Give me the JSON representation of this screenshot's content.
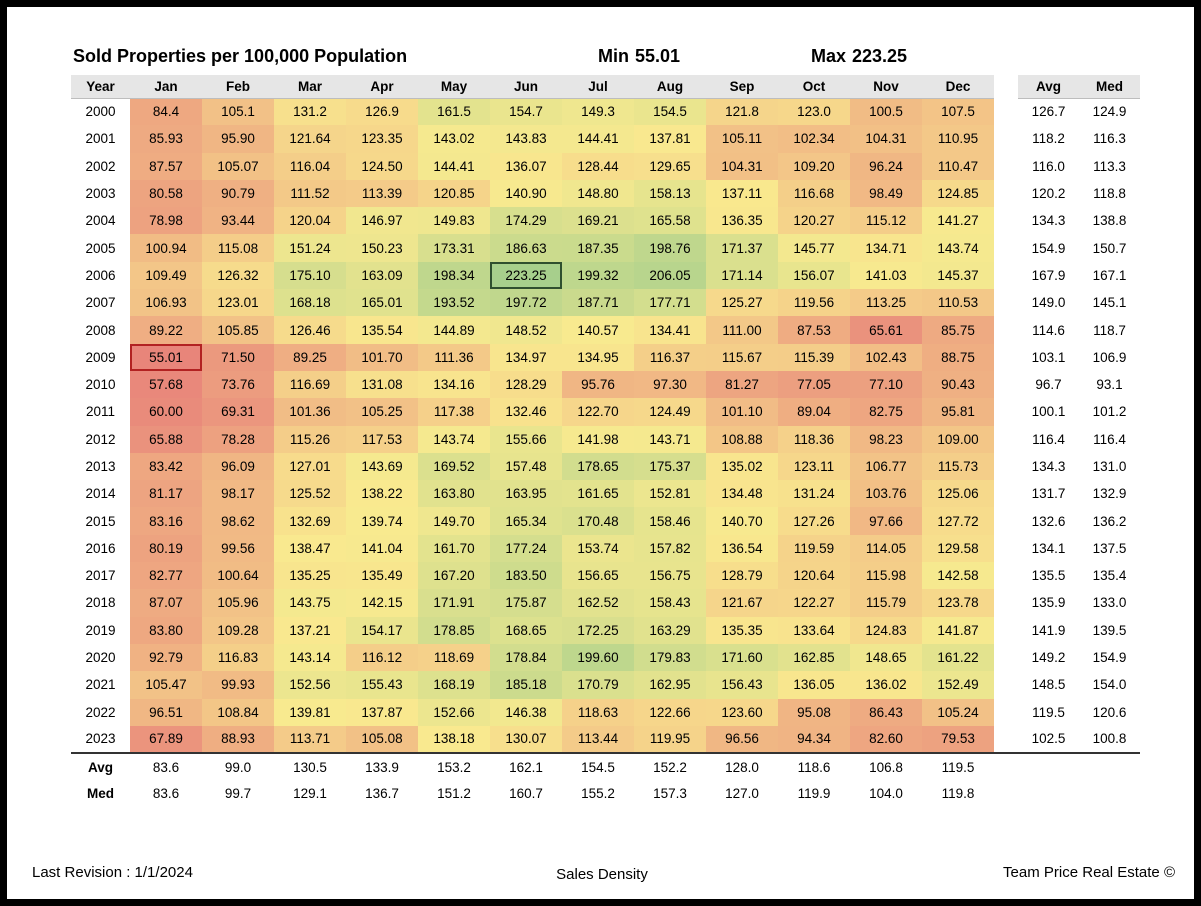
{
  "title": "Sold Properties per 100,000 Population",
  "min_label": "Min",
  "min_value": "55.01",
  "max_label": "Max",
  "max_value": "223.25",
  "chart_data": {
    "type": "heatmap",
    "title": "Sold Properties per 100,000 Population",
    "colorscale": [
      "#e8857a",
      "#f9ea8f",
      "#a7cf8c"
    ],
    "value_range": [
      55.01,
      223.25
    ],
    "headers": {
      "year": "Year",
      "months": [
        "Jan",
        "Feb",
        "Mar",
        "Apr",
        "May",
        "Jun",
        "Jul",
        "Aug",
        "Sep",
        "Oct",
        "Nov",
        "Dec"
      ],
      "avg": "Avg",
      "med": "Med"
    },
    "rows": [
      {
        "year": "2000",
        "values": [
          "84.4",
          "105.1",
          "131.2",
          "126.9",
          "161.5",
          "154.7",
          "149.3",
          "154.5",
          "121.8",
          "123.0",
          "100.5",
          "107.5"
        ],
        "avg": "126.7",
        "med": "124.9"
      },
      {
        "year": "2001",
        "values": [
          "85.93",
          "95.90",
          "121.64",
          "123.35",
          "143.02",
          "143.83",
          "144.41",
          "137.81",
          "105.11",
          "102.34",
          "104.31",
          "110.95"
        ],
        "avg": "118.2",
        "med": "116.3"
      },
      {
        "year": "2002",
        "values": [
          "87.57",
          "105.07",
          "116.04",
          "124.50",
          "144.41",
          "136.07",
          "128.44",
          "129.65",
          "104.31",
          "109.20",
          "96.24",
          "110.47"
        ],
        "avg": "116.0",
        "med": "113.3"
      },
      {
        "year": "2003",
        "values": [
          "80.58",
          "90.79",
          "111.52",
          "113.39",
          "120.85",
          "140.90",
          "148.80",
          "158.13",
          "137.11",
          "116.68",
          "98.49",
          "124.85"
        ],
        "avg": "120.2",
        "med": "118.8"
      },
      {
        "year": "2004",
        "values": [
          "78.98",
          "93.44",
          "120.04",
          "146.97",
          "149.83",
          "174.29",
          "169.21",
          "165.58",
          "136.35",
          "120.27",
          "115.12",
          "141.27"
        ],
        "avg": "134.3",
        "med": "138.8"
      },
      {
        "year": "2005",
        "values": [
          "100.94",
          "115.08",
          "151.24",
          "150.23",
          "173.31",
          "186.63",
          "187.35",
          "198.76",
          "171.37",
          "145.77",
          "134.71",
          "143.74"
        ],
        "avg": "154.9",
        "med": "150.7"
      },
      {
        "year": "2006",
        "values": [
          "109.49",
          "126.32",
          "175.10",
          "163.09",
          "198.34",
          "223.25",
          "199.32",
          "206.05",
          "171.14",
          "156.07",
          "141.03",
          "145.37"
        ],
        "avg": "167.9",
        "med": "167.1"
      },
      {
        "year": "2007",
        "values": [
          "106.93",
          "123.01",
          "168.18",
          "165.01",
          "193.52",
          "197.72",
          "187.71",
          "177.71",
          "125.27",
          "119.56",
          "113.25",
          "110.53"
        ],
        "avg": "149.0",
        "med": "145.1"
      },
      {
        "year": "2008",
        "values": [
          "89.22",
          "105.85",
          "126.46",
          "135.54",
          "144.89",
          "148.52",
          "140.57",
          "134.41",
          "111.00",
          "87.53",
          "65.61",
          "85.75"
        ],
        "avg": "114.6",
        "med": "118.7"
      },
      {
        "year": "2009",
        "values": [
          "55.01",
          "71.50",
          "89.25",
          "101.70",
          "111.36",
          "134.97",
          "134.95",
          "116.37",
          "115.67",
          "115.39",
          "102.43",
          "88.75"
        ],
        "avg": "103.1",
        "med": "106.9"
      },
      {
        "year": "2010",
        "values": [
          "57.68",
          "73.76",
          "116.69",
          "131.08",
          "134.16",
          "128.29",
          "95.76",
          "97.30",
          "81.27",
          "77.05",
          "77.10",
          "90.43"
        ],
        "avg": "96.7",
        "med": "93.1"
      },
      {
        "year": "2011",
        "values": [
          "60.00",
          "69.31",
          "101.36",
          "105.25",
          "117.38",
          "132.46",
          "122.70",
          "124.49",
          "101.10",
          "89.04",
          "82.75",
          "95.81"
        ],
        "avg": "100.1",
        "med": "101.2"
      },
      {
        "year": "2012",
        "values": [
          "65.88",
          "78.28",
          "115.26",
          "117.53",
          "143.74",
          "155.66",
          "141.98",
          "143.71",
          "108.88",
          "118.36",
          "98.23",
          "109.00"
        ],
        "avg": "116.4",
        "med": "116.4"
      },
      {
        "year": "2013",
        "values": [
          "83.42",
          "96.09",
          "127.01",
          "143.69",
          "169.52",
          "157.48",
          "178.65",
          "175.37",
          "135.02",
          "123.11",
          "106.77",
          "115.73"
        ],
        "avg": "134.3",
        "med": "131.0"
      },
      {
        "year": "2014",
        "values": [
          "81.17",
          "98.17",
          "125.52",
          "138.22",
          "163.80",
          "163.95",
          "161.65",
          "152.81",
          "134.48",
          "131.24",
          "103.76",
          "125.06"
        ],
        "avg": "131.7",
        "med": "132.9"
      },
      {
        "year": "2015",
        "values": [
          "83.16",
          "98.62",
          "132.69",
          "139.74",
          "149.70",
          "165.34",
          "170.48",
          "158.46",
          "140.70",
          "127.26",
          "97.66",
          "127.72"
        ],
        "avg": "132.6",
        "med": "136.2"
      },
      {
        "year": "2016",
        "values": [
          "80.19",
          "99.56",
          "138.47",
          "141.04",
          "161.70",
          "177.24",
          "153.74",
          "157.82",
          "136.54",
          "119.59",
          "114.05",
          "129.58"
        ],
        "avg": "134.1",
        "med": "137.5"
      },
      {
        "year": "2017",
        "values": [
          "82.77",
          "100.64",
          "135.25",
          "135.49",
          "167.20",
          "183.50",
          "156.65",
          "156.75",
          "128.79",
          "120.64",
          "115.98",
          "142.58"
        ],
        "avg": "135.5",
        "med": "135.4"
      },
      {
        "year": "2018",
        "values": [
          "87.07",
          "105.96",
          "143.75",
          "142.15",
          "171.91",
          "175.87",
          "162.52",
          "158.43",
          "121.67",
          "122.27",
          "115.79",
          "123.78"
        ],
        "avg": "135.9",
        "med": "133.0"
      },
      {
        "year": "2019",
        "values": [
          "83.80",
          "109.28",
          "137.21",
          "154.17",
          "178.85",
          "168.65",
          "172.25",
          "163.29",
          "135.35",
          "133.64",
          "124.83",
          "141.87"
        ],
        "avg": "141.9",
        "med": "139.5"
      },
      {
        "year": "2020",
        "values": [
          "92.79",
          "116.83",
          "143.14",
          "116.12",
          "118.69",
          "178.84",
          "199.60",
          "179.83",
          "171.60",
          "162.85",
          "148.65",
          "161.22"
        ],
        "avg": "149.2",
        "med": "154.9"
      },
      {
        "year": "2021",
        "values": [
          "105.47",
          "99.93",
          "152.56",
          "155.43",
          "168.19",
          "185.18",
          "170.79",
          "162.95",
          "156.43",
          "136.05",
          "136.02",
          "152.49"
        ],
        "avg": "148.5",
        "med": "154.0"
      },
      {
        "year": "2022",
        "values": [
          "96.51",
          "108.84",
          "139.81",
          "137.87",
          "152.66",
          "146.38",
          "118.63",
          "122.66",
          "123.60",
          "95.08",
          "86.43",
          "105.24"
        ],
        "avg": "119.5",
        "med": "120.6"
      },
      {
        "year": "2023",
        "values": [
          "67.89",
          "88.93",
          "113.71",
          "105.08",
          "138.18",
          "130.07",
          "113.44",
          "119.95",
          "96.56",
          "94.34",
          "82.60",
          "79.53"
        ],
        "avg": "102.5",
        "med": "100.8"
      }
    ],
    "footer_rows": [
      {
        "label": "Avg",
        "values": [
          "83.6",
          "99.0",
          "130.5",
          "133.9",
          "153.2",
          "162.1",
          "154.5",
          "152.2",
          "128.0",
          "118.6",
          "106.8",
          "119.5"
        ]
      },
      {
        "label": "Med",
        "values": [
          "83.6",
          "99.7",
          "129.1",
          "136.7",
          "151.2",
          "160.7",
          "155.2",
          "157.3",
          "127.0",
          "119.9",
          "104.0",
          "119.8"
        ]
      }
    ],
    "highlight": {
      "min": {
        "row": 9,
        "col": 0
      },
      "max": {
        "row": 6,
        "col": 5
      }
    }
  },
  "footer": {
    "revision": "Last Revision : 1/1/2024",
    "center": "Sales Density",
    "right": "Team Price Real Estate ©"
  }
}
